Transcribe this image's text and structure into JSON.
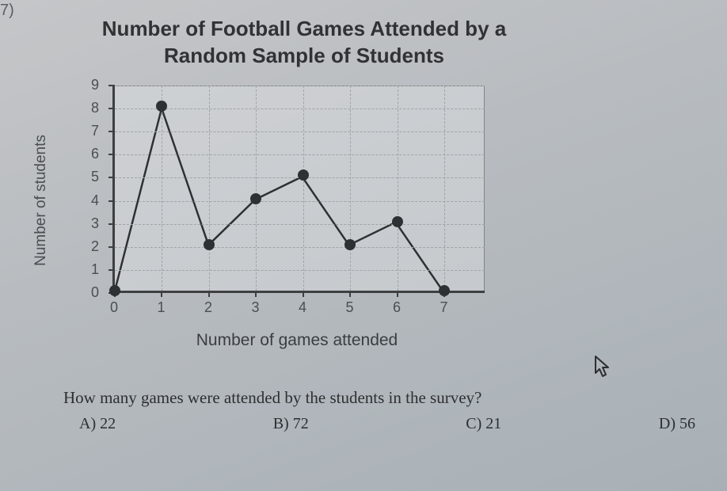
{
  "question_number": "7)",
  "chart": {
    "type": "line-dot",
    "title_line1": "Number of Football Games Attended by a",
    "title_line2": "Random Sample of Students",
    "xlabel": "Number of games attended",
    "ylabel": "Number of students",
    "x_ticks": [
      0,
      1,
      2,
      3,
      4,
      5,
      6,
      7
    ],
    "y_ticks": [
      0,
      1,
      2,
      3,
      4,
      5,
      6,
      7,
      8,
      9
    ],
    "xlim": [
      0,
      7.9
    ],
    "ylim": [
      0,
      9
    ],
    "points": [
      {
        "x": 0,
        "y": 0
      },
      {
        "x": 1,
        "y": 8
      },
      {
        "x": 2,
        "y": 2
      },
      {
        "x": 3,
        "y": 4
      },
      {
        "x": 4,
        "y": 5
      },
      {
        "x": 5,
        "y": 2
      },
      {
        "x": 6,
        "y": 3
      },
      {
        "x": 7,
        "y": 0
      }
    ],
    "line_color": "#2e3133",
    "line_width": 2.5,
    "point_radius": 7,
    "point_color": "#2e3133",
    "grid_color": "#9fa4a7",
    "axis_color": "#3d3f41",
    "tick_fontsize": 18,
    "label_fontsize": 20,
    "title_fontsize": 26,
    "background_color": "#c0c3c6"
  },
  "question_text": "How many games were attended by the students in the survey?",
  "answers": {
    "a": "A) 22",
    "b": "B) 72",
    "c": "C) 21",
    "d": "D) 56"
  },
  "cursor": "⇱"
}
